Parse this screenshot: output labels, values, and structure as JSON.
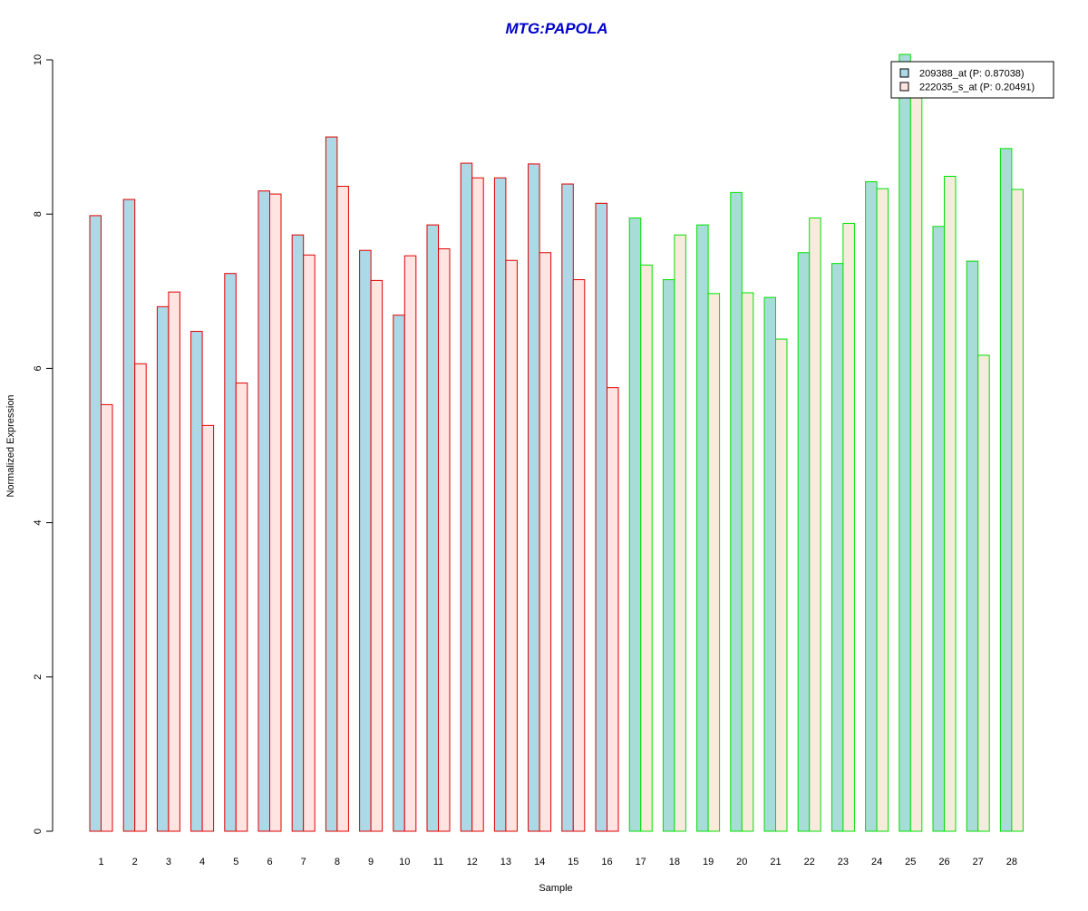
{
  "chart_data": {
    "type": "bar",
    "title": "MTG:PAPOLA",
    "xlabel": "Sample",
    "ylabel": "Normalized Expression",
    "ylim": [
      0,
      10
    ],
    "yticks": [
      0,
      2,
      4,
      6,
      8,
      10
    ],
    "grid": false,
    "legend_position": "top-right",
    "categories": [
      "1",
      "2",
      "3",
      "4",
      "5",
      "6",
      "7",
      "8",
      "9",
      "10",
      "11",
      "12",
      "13",
      "14",
      "15",
      "16",
      "17",
      "18",
      "19",
      "20",
      "21",
      "22",
      "23",
      "24",
      "25",
      "26",
      "27",
      "28"
    ],
    "series": [
      {
        "name": "209388_at (P: 0.87038)",
        "values": [
          7.98,
          8.19,
          6.8,
          6.48,
          7.23,
          8.3,
          7.73,
          9.0,
          7.53,
          6.69,
          7.86,
          8.66,
          8.47,
          8.65,
          8.39,
          8.14,
          7.95,
          7.15,
          7.86,
          8.28,
          6.92,
          7.5,
          7.36,
          8.42,
          10.07,
          7.84,
          7.39,
          8.85
        ]
      },
      {
        "name": "222035_s_at (P: 0.20491)",
        "values": [
          5.53,
          6.06,
          6.99,
          5.26,
          5.81,
          8.26,
          7.47,
          8.36,
          7.14,
          7.46,
          7.55,
          8.47,
          7.4,
          7.5,
          7.15,
          5.75,
          7.34,
          7.73,
          6.97,
          6.98,
          6.38,
          7.95,
          7.88,
          8.33,
          9.7,
          8.49,
          6.17,
          8.32
        ]
      }
    ],
    "colors": {
      "title": "#0000cc",
      "series1_fill_group1": "#add8e6",
      "series2_fill_group1": "#ffe4e1",
      "series1_fill_group2": "#a8dcd8",
      "series2_fill_group2": "#f7ecdc",
      "border_group1": "#e00000",
      "border_group2": "#00e000",
      "axis": "#000000"
    },
    "groups": [
      {
        "samples": [
          1,
          2,
          3,
          4,
          5,
          6,
          7,
          8,
          9,
          10,
          11,
          12,
          13,
          14,
          15,
          16
        ],
        "border": "#e00000"
      },
      {
        "samples": [
          17,
          18,
          19,
          20,
          21,
          22,
          23,
          24,
          25,
          26,
          27,
          28
        ],
        "border": "#00e000"
      }
    ]
  }
}
